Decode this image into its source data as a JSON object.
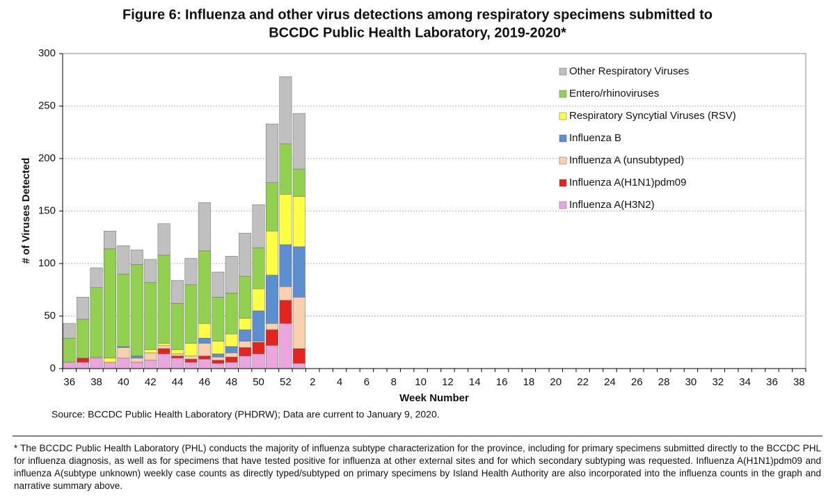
{
  "chart_data": {
    "type": "stacked_bar",
    "title": "Figure 6: Influenza and other virus detections among respiratory specimens submitted to",
    "title_line2": "BCCDC Public Health Laboratory, 2019-2020*",
    "y_label": "# of Viruses Detected",
    "x_label": "Week Number",
    "source": "Source: BCCDC Public Health Laboratory (PHDRW); Data are current to January 9, 2020.",
    "footnote": "* The BCCDC Public Health Laboratory (PHL) conducts the majority of influenza subtype characterization for the province, including for primary specimens submitted directly to the BCCDC PHL for influenza diagnosis, as well as for specimens that have tested positive for influenza at other external sites and for which secondary subtyping was requested. Influenza A(H1N1)pdm09 and influenza A(subtype unknown) weekly case counts as directly typed/subtyped on primary specimens by Island Health Authority are also incorporated into the influenza counts in the graph and narrative summary above.",
    "categories": [
      "36",
      null,
      "38",
      null,
      "40",
      null,
      "42",
      null,
      "44",
      null,
      "46",
      null,
      "48",
      null,
      "50",
      null,
      "52",
      null,
      "2",
      null,
      "4",
      null,
      "6",
      null,
      "8",
      null,
      "10",
      null,
      "12",
      null,
      "14",
      null,
      "16",
      null,
      "18",
      null,
      "20",
      null,
      "22",
      null,
      "24",
      null,
      "26",
      null,
      "28",
      null,
      "30",
      null,
      "32",
      null,
      "34",
      null,
      "36",
      null,
      "38"
    ],
    "ylim": [
      0,
      300
    ],
    "yticks": [
      0,
      50,
      100,
      150,
      200,
      250,
      300
    ],
    "grid": true,
    "legend": "upper right",
    "series": [
      {
        "name": "Influenza A(H3N2)",
        "color": "#eba6dd",
        "values": [
          6,
          6,
          10,
          6,
          10,
          6,
          8,
          14,
          10,
          6,
          9,
          5,
          6,
          12,
          14,
          22,
          43,
          5,
          null,
          null,
          null,
          null,
          null,
          null,
          null,
          null,
          null,
          null,
          null,
          null,
          null,
          null,
          null,
          null,
          null,
          null,
          null,
          null,
          null,
          null,
          null,
          null,
          null,
          null,
          null,
          null,
          null,
          null,
          null,
          null,
          null,
          null,
          null,
          null,
          null
        ]
      },
      {
        "name": "Influenza A(H1N1)pdm09",
        "color": "#e5231f",
        "values": [
          0,
          4,
          0,
          0,
          0,
          0,
          0,
          5,
          2,
          3,
          3,
          3,
          5,
          8,
          11,
          15,
          22,
          14,
          null,
          null,
          null,
          null,
          null,
          null,
          null,
          null,
          null,
          null,
          null,
          null,
          null,
          null,
          null,
          null,
          null,
          null,
          null,
          null,
          null,
          null,
          null,
          null,
          null,
          null,
          null,
          null,
          null,
          null,
          null,
          null,
          null,
          null,
          null,
          null,
          null
        ]
      },
      {
        "name": "Influenza A (unsubtyped)",
        "color": "#f8d0ad",
        "values": [
          0,
          0,
          1,
          0,
          10,
          4,
          7,
          3,
          2,
          3,
          12,
          3,
          4,
          6,
          1,
          6,
          13,
          49,
          null,
          null,
          null,
          null,
          null,
          null,
          null,
          null,
          null,
          null,
          null,
          null,
          null,
          null,
          null,
          null,
          null,
          null,
          null,
          null,
          null,
          null,
          null,
          null,
          null,
          null,
          null,
          null,
          null,
          null,
          null,
          null,
          null,
          null,
          null,
          null,
          null
        ]
      },
      {
        "name": "Influenza B",
        "color": "#5b8fd2",
        "values": [
          0,
          0,
          0,
          0,
          1,
          2,
          0,
          0,
          0,
          0,
          5,
          3,
          6,
          11,
          29,
          46,
          40,
          48,
          null,
          null,
          null,
          null,
          null,
          null,
          null,
          null,
          null,
          null,
          null,
          null,
          null,
          null,
          null,
          null,
          null,
          null,
          null,
          null,
          null,
          null,
          null,
          null,
          null,
          null,
          null,
          null,
          null,
          null,
          null,
          null,
          null,
          null,
          null,
          null,
          null
        ]
      },
      {
        "name": "Respiratory Syncytial Viruses (RSV)",
        "color": "#ffff44",
        "values": [
          0,
          0,
          0,
          4,
          0,
          0,
          3,
          2,
          4,
          12,
          14,
          12,
          12,
          11,
          21,
          42,
          48,
          48,
          null,
          null,
          null,
          null,
          null,
          null,
          null,
          null,
          null,
          null,
          null,
          null,
          null,
          null,
          null,
          null,
          null,
          null,
          null,
          null,
          null,
          null,
          null,
          null,
          null,
          null,
          null,
          null,
          null,
          null,
          null,
          null,
          null,
          null,
          null,
          null,
          null
        ]
      },
      {
        "name": "Entero/rhinoviruses",
        "color": "#92d050",
        "values": [
          23,
          37,
          66,
          104,
          69,
          87,
          64,
          84,
          44,
          56,
          69,
          42,
          39,
          40,
          39,
          46,
          48,
          26,
          null,
          null,
          null,
          null,
          null,
          null,
          null,
          null,
          null,
          null,
          null,
          null,
          null,
          null,
          null,
          null,
          null,
          null,
          null,
          null,
          null,
          null,
          null,
          null,
          null,
          null,
          null,
          null,
          null,
          null,
          null,
          null,
          null,
          null,
          null,
          null,
          null
        ]
      },
      {
        "name": "Other Respiratory Viruses",
        "color": "#c0c0c0",
        "values": [
          14,
          21,
          19,
          17,
          27,
          14,
          22,
          30,
          22,
          25,
          46,
          24,
          35,
          41,
          41,
          56,
          64,
          53,
          null,
          null,
          null,
          null,
          null,
          null,
          null,
          null,
          null,
          null,
          null,
          null,
          null,
          null,
          null,
          null,
          null,
          null,
          null,
          null,
          null,
          null,
          null,
          null,
          null,
          null,
          null,
          null,
          null,
          null,
          null,
          null,
          null,
          null,
          null,
          null,
          null
        ]
      }
    ]
  }
}
